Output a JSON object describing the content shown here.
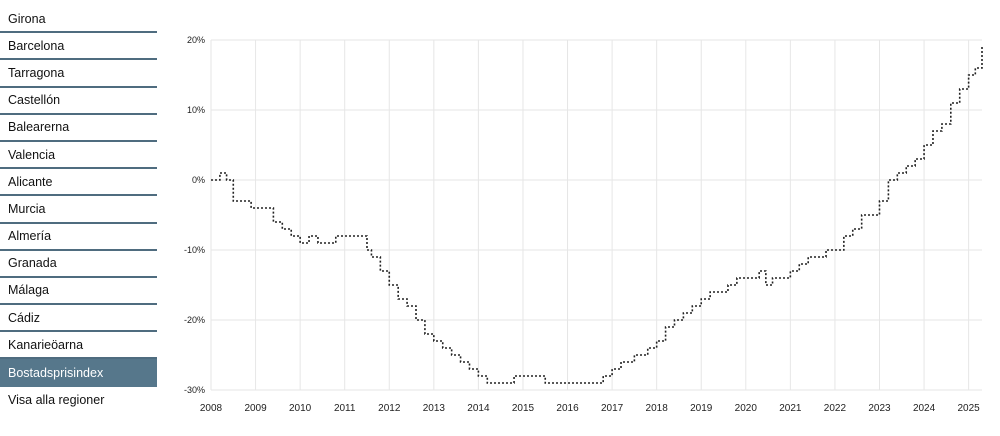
{
  "sidebar": {
    "items": [
      {
        "label": "Girona",
        "active": false
      },
      {
        "label": "Barcelona",
        "active": false
      },
      {
        "label": "Tarragona",
        "active": false
      },
      {
        "label": "Castellón",
        "active": false
      },
      {
        "label": "Balearerna",
        "active": false
      },
      {
        "label": "Valencia",
        "active": false
      },
      {
        "label": "Alicante",
        "active": false
      },
      {
        "label": "Murcia",
        "active": false
      },
      {
        "label": "Almería",
        "active": false
      },
      {
        "label": "Granada",
        "active": false
      },
      {
        "label": "Málaga",
        "active": false
      },
      {
        "label": "Cádiz",
        "active": false
      },
      {
        "label": "Kanarieöarna",
        "active": false
      },
      {
        "label": "Bostadsprisindex",
        "active": true
      },
      {
        "label": "Visa alla regioner",
        "active": false
      }
    ]
  },
  "chart_data": {
    "type": "line",
    "title": "",
    "xlabel": "",
    "ylabel": "",
    "xlim": [
      2008,
      2025.3
    ],
    "ylim": [
      -30,
      20
    ],
    "x_ticks": [
      2008,
      2009,
      2010,
      2011,
      2012,
      2013,
      2014,
      2015,
      2016,
      2017,
      2018,
      2019,
      2020,
      2021,
      2022,
      2023,
      2024,
      2025
    ],
    "y_ticks": [
      -30,
      -20,
      -10,
      0,
      10,
      20
    ],
    "y_tick_labels": [
      "-30%",
      "-20%",
      "-10%",
      "0%",
      "10%",
      "20%"
    ],
    "grid": true,
    "line_style": "dotted",
    "line_color": "#222222",
    "series": [
      {
        "x": [
          2008.0,
          2008.1,
          2008.2,
          2008.35,
          2008.5,
          2008.6,
          2008.9,
          2009.1,
          2009.4,
          2009.6,
          2009.8,
          2010.0,
          2010.2,
          2010.4,
          2010.6,
          2010.8,
          2011.0,
          2011.3,
          2011.5,
          2011.6,
          2011.8,
          2012.0,
          2012.2,
          2012.4,
          2012.6,
          2012.8,
          2013.0,
          2013.2,
          2013.4,
          2013.6,
          2013.8,
          2014.0,
          2014.2,
          2014.4,
          2014.6,
          2014.8,
          2015.0,
          2015.3,
          2015.5,
          2015.8,
          2016.0,
          2016.3,
          2016.6,
          2016.8,
          2017.0,
          2017.2,
          2017.5,
          2017.8,
          2018.0,
          2018.2,
          2018.4,
          2018.6,
          2018.8,
          2019.0,
          2019.2,
          2019.4,
          2019.6,
          2019.8,
          2020.0,
          2020.2,
          2020.3,
          2020.45,
          2020.6,
          2020.8,
          2021.0,
          2021.2,
          2021.4,
          2021.6,
          2021.8,
          2022.0,
          2022.2,
          2022.4,
          2022.6,
          2022.8,
          2023.0,
          2023.2,
          2023.4,
          2023.6,
          2023.8,
          2024.0,
          2024.2,
          2024.4,
          2024.6,
          2024.8,
          2025.0,
          2025.15,
          2025.3
        ],
        "y": [
          0,
          0,
          1,
          0,
          -3,
          -3,
          -4,
          -4,
          -6,
          -7,
          -8,
          -9,
          -8,
          -9,
          -9,
          -8,
          -8,
          -8,
          -10,
          -11,
          -13,
          -15,
          -17,
          -18,
          -20,
          -22,
          -23,
          -24,
          -25,
          -26,
          -27,
          -28,
          -29,
          -29,
          -29,
          -28,
          -28,
          -28,
          -29,
          -29,
          -29,
          -29,
          -29,
          -28,
          -27,
          -26,
          -25,
          -24,
          -23,
          -21,
          -20,
          -19,
          -18,
          -17,
          -16,
          -16,
          -15,
          -14,
          -14,
          -14,
          -13,
          -15,
          -14,
          -14,
          -13,
          -12,
          -11,
          -11,
          -10,
          -10,
          -8,
          -7,
          -5,
          -5,
          -3,
          0,
          1,
          2,
          3,
          5,
          7,
          8,
          11,
          13,
          15,
          16,
          19
        ]
      }
    ]
  }
}
